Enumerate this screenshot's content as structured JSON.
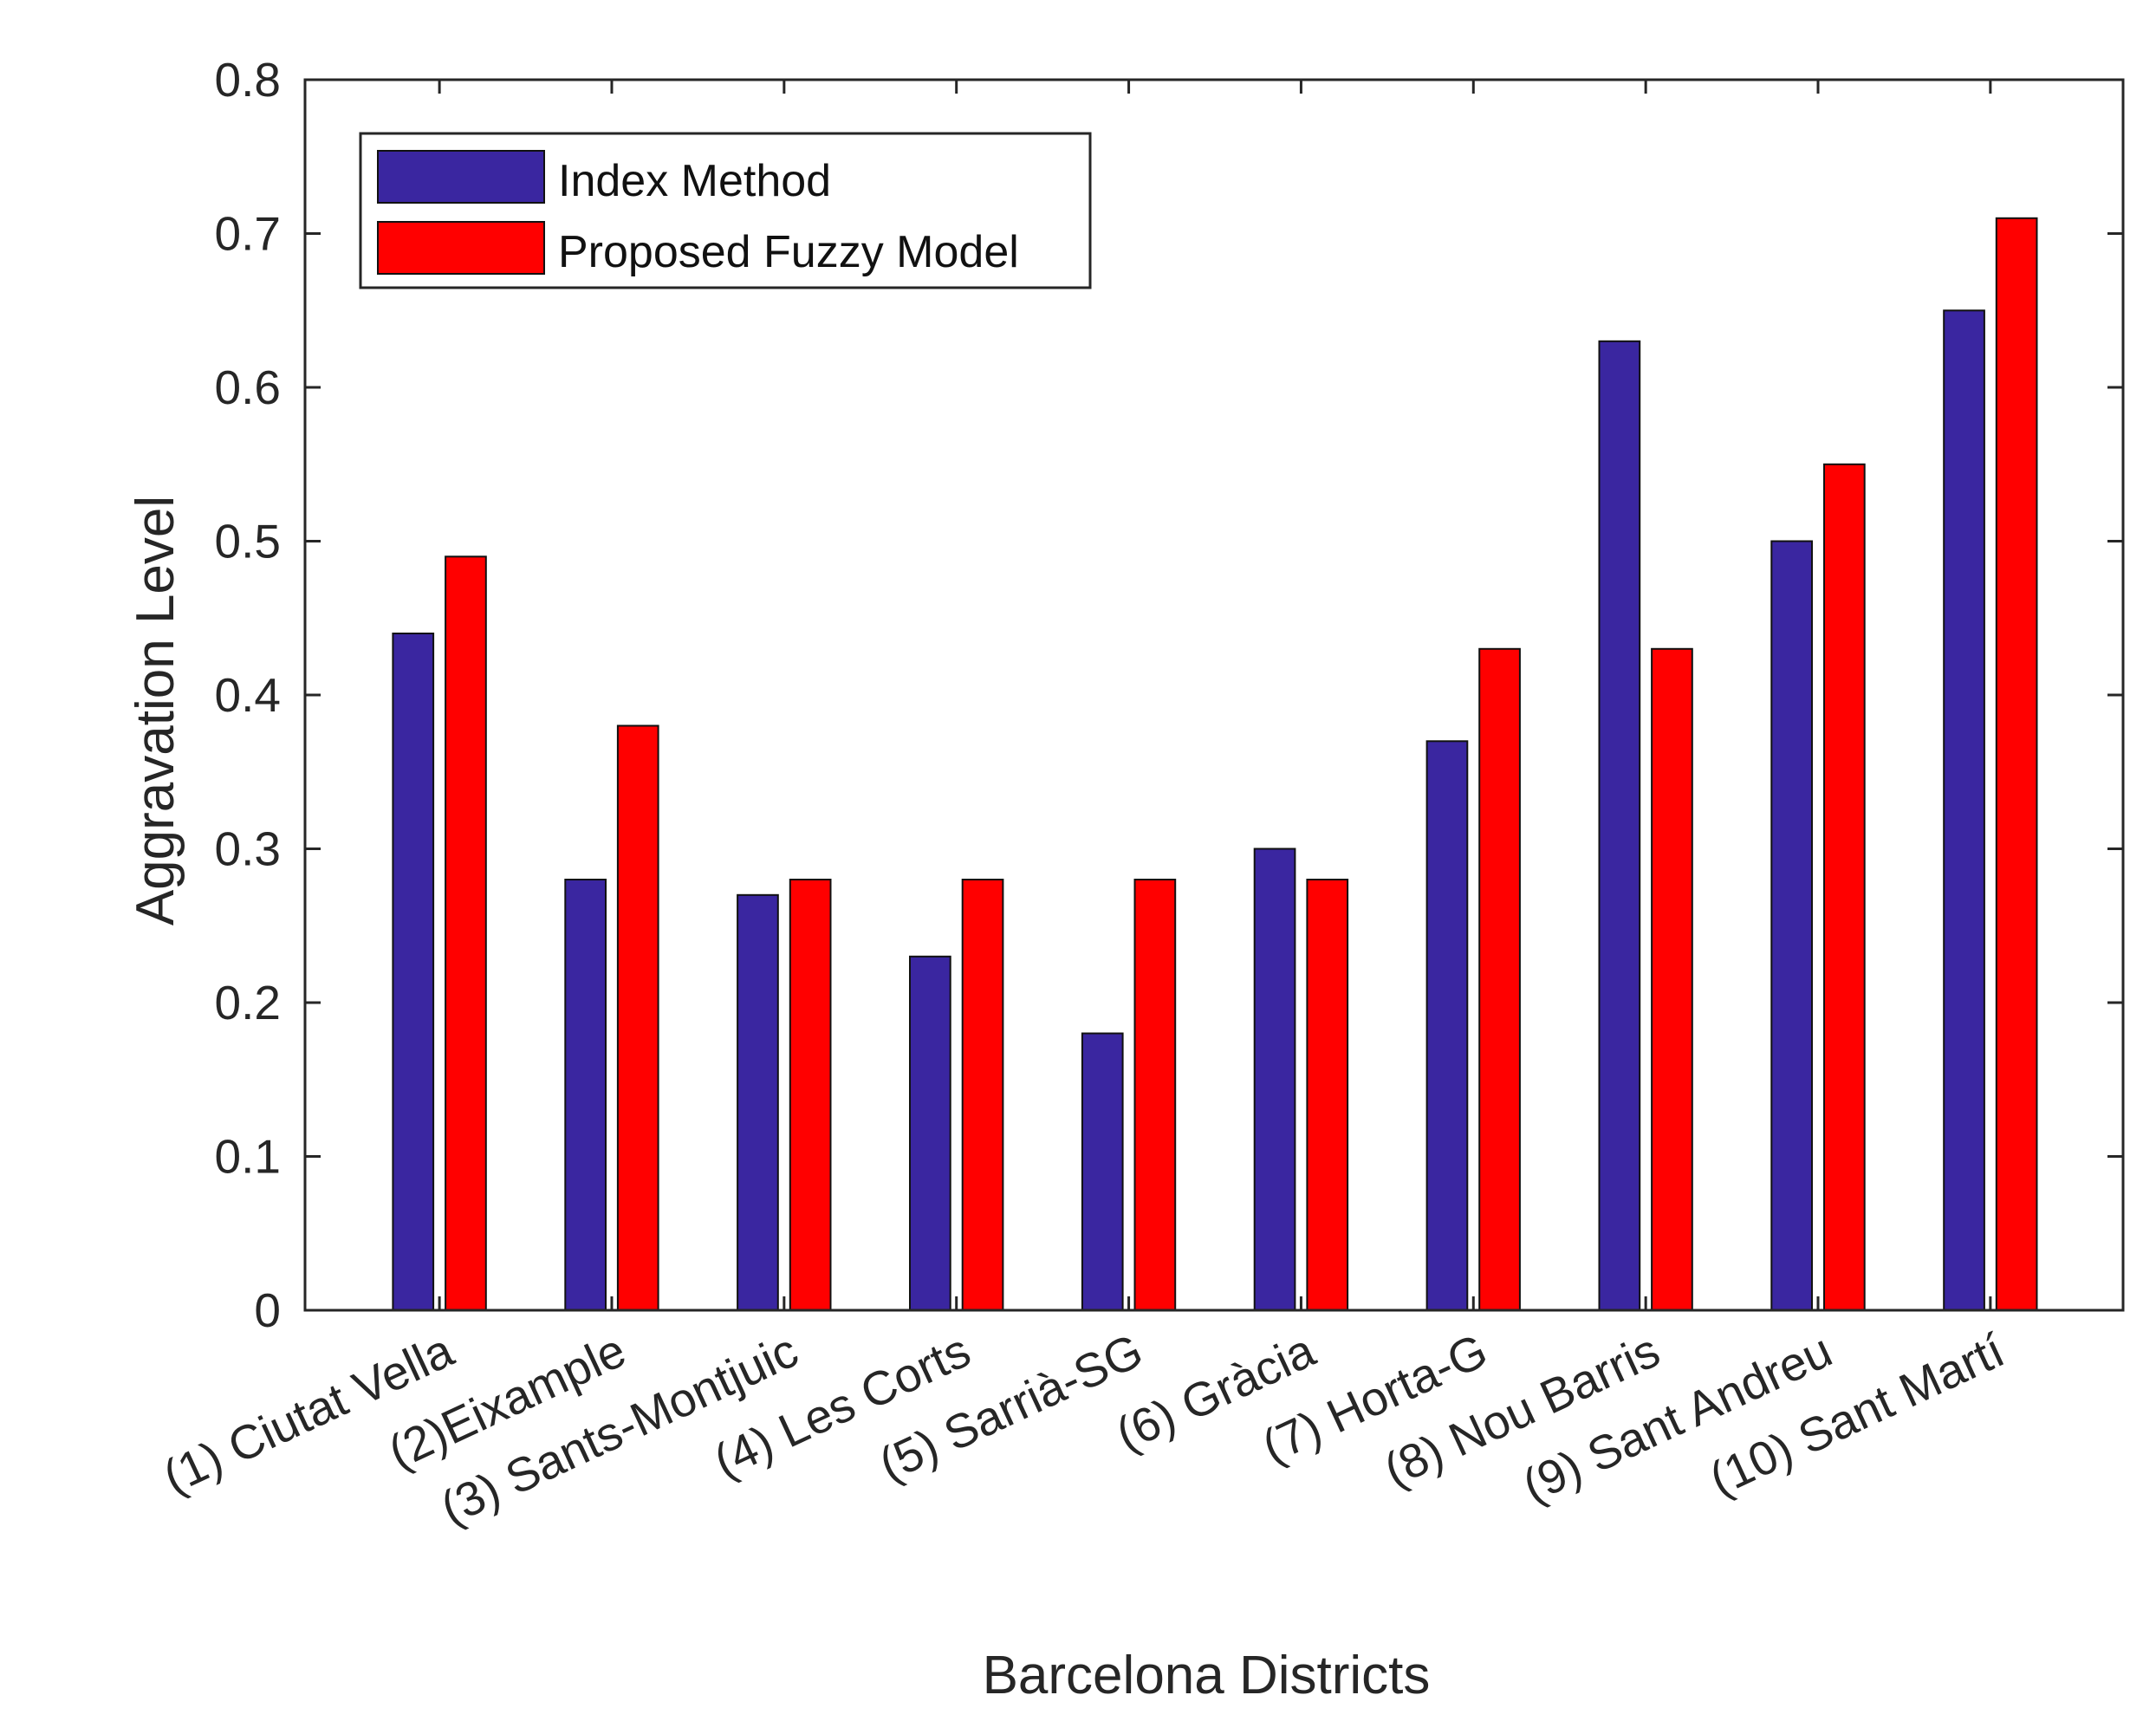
{
  "chart_data": {
    "type": "bar",
    "title": "",
    "xlabel": "Barcelona Districts",
    "ylabel": "Aggravation Level",
    "ylim": [
      0,
      0.8
    ],
    "yticks": [
      "0",
      "0.1",
      "0.2",
      "0.3",
      "0.4",
      "0.5",
      "0.6",
      "0.7",
      "0.8"
    ],
    "grid": false,
    "legend_position": "top-left",
    "categories": [
      "(1) Ciutat Vella",
      "(2)Eixample",
      "(3) Sants-Montjuic",
      "(4) Les Corts",
      "(5) Sarrià-SG",
      "(6) Gràcia",
      "(7) Horta-G",
      "(8) Nou Barris",
      "(9) Sant Andreu",
      "(10) Sant Martí"
    ],
    "series": [
      {
        "name": "Index Method",
        "color": "#3a26a0",
        "values": [
          0.44,
          0.28,
          0.27,
          0.23,
          0.18,
          0.3,
          0.37,
          0.63,
          0.5,
          0.65
        ]
      },
      {
        "name": "Proposed Fuzzy Model",
        "color": "#ff0000",
        "values": [
          0.49,
          0.38,
          0.28,
          0.28,
          0.28,
          0.28,
          0.43,
          0.43,
          0.55,
          0.71
        ]
      }
    ]
  }
}
